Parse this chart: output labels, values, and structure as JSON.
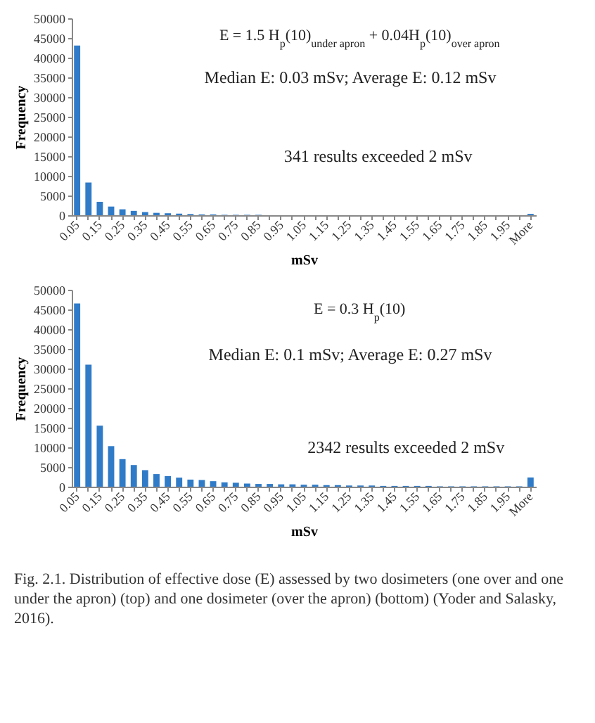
{
  "chart_data": [
    {
      "type": "bar",
      "xlabel": "mSv",
      "ylabel": "Frequency",
      "color": "#2f7bc8",
      "categories": [
        "0.05",
        null,
        "0.15",
        null,
        "0.25",
        null,
        "0.35",
        null,
        "0.45",
        null,
        "0.55",
        null,
        "0.65",
        null,
        "0.75",
        null,
        "0.85",
        null,
        "0.95",
        null,
        "1.05",
        null,
        "1.15",
        null,
        "1.25",
        null,
        "1.35",
        null,
        "1.45",
        null,
        "1.55",
        null,
        "1.65",
        null,
        "1.75",
        null,
        "1.85",
        null,
        "1.95",
        null,
        "More"
      ],
      "values": [
        43100,
        8300,
        3400,
        2200,
        1500,
        1100,
        800,
        600,
        500,
        400,
        300,
        200,
        200,
        100,
        100,
        100,
        100,
        0,
        0,
        0,
        0,
        0,
        0,
        0,
        0,
        0,
        0,
        0,
        0,
        0,
        0,
        0,
        0,
        0,
        0,
        0,
        0,
        0,
        0,
        0,
        341
      ],
      "ylim": [
        0,
        50000
      ],
      "yticks": [
        0,
        5000,
        10000,
        15000,
        20000,
        25000,
        30000,
        35000,
        40000,
        45000,
        50000
      ],
      "annotations": [
        "E = 1.5 H$_{p}$(10)$_{under apron}$ + 0.04H$_{p}$(10)$_{over apron}$",
        "Median E: 0.03 mSv;  Average E: 0.12 mSv",
        "341 results exceeded 2 mSv"
      ]
    },
    {
      "type": "bar",
      "xlabel": "mSv",
      "ylabel": "Frequency",
      "color": "#2f7bc8",
      "categories": [
        "0.05",
        null,
        "0.15",
        null,
        "0.25",
        null,
        "0.35",
        null,
        "0.45",
        null,
        "0.55",
        null,
        "0.65",
        null,
        "0.75",
        null,
        "0.85",
        null,
        "0.95",
        null,
        "1.05",
        null,
        "1.15",
        null,
        "1.25",
        null,
        "1.35",
        null,
        "1.45",
        null,
        "1.55",
        null,
        "1.65",
        null,
        "1.75",
        null,
        "1.85",
        null,
        "1.95",
        null,
        "More"
      ],
      "values": [
        46500,
        31000,
        15500,
        10300,
        7000,
        5500,
        4200,
        3200,
        2700,
        2300,
        1800,
        1700,
        1400,
        1100,
        1000,
        800,
        700,
        700,
        600,
        600,
        500,
        500,
        400,
        400,
        300,
        300,
        300,
        200,
        200,
        200,
        200,
        200,
        100,
        100,
        100,
        100,
        100,
        100,
        100,
        100,
        2342
      ],
      "ylim": [
        0,
        50000
      ],
      "yticks": [
        0,
        5000,
        10000,
        15000,
        20000,
        25000,
        30000,
        35000,
        40000,
        45000,
        50000
      ],
      "annotations": [
        "E = 0.3 H$_{p}$(10)",
        "Median E: 0.1 mSv;  Average E: 0.27 mSv",
        "2342 results exceeded 2 mSv",
        "Fig. 2.1. Distribution of effective dose (E) assessed by two dosimeters (one over and one under the apron) (top) and one dosimeter (over the apron) (bottom) (Yoder and Salasky, 2016)."
      ]
    }
  ]
}
